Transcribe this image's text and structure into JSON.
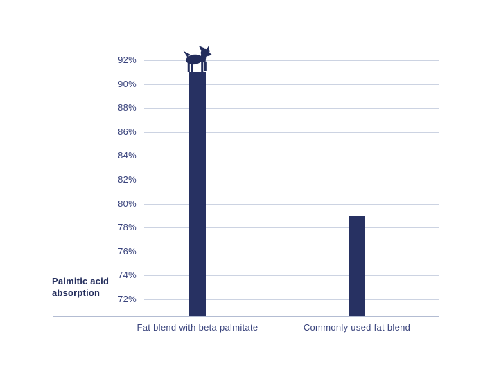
{
  "chart_data": {
    "type": "bar",
    "title": "",
    "ylabel": "Palmitic acid absorption",
    "xlabel": "",
    "categories": [
      "Fat blend with beta palmitate",
      "Commonly used fat blend"
    ],
    "values": [
      91,
      79
    ],
    "value_suffix": "%",
    "yticks": [
      {
        "value": 92,
        "label": "92%"
      },
      {
        "value": 90,
        "label": "90%"
      },
      {
        "value": 88,
        "label": "88%"
      },
      {
        "value": 86,
        "label": "86%"
      },
      {
        "value": 84,
        "label": "84%"
      },
      {
        "value": 82,
        "label": "82%"
      },
      {
        "value": 80,
        "label": "80%"
      },
      {
        "value": 78,
        "label": "78%"
      },
      {
        "value": 76,
        "label": "76%"
      },
      {
        "value": 74,
        "label": "74%"
      },
      {
        "value": 72,
        "label": "72%"
      }
    ],
    "ylim": [
      70.5,
      93.5
    ],
    "grid": true,
    "legend": false,
    "marker": {
      "icon": "dog-icon",
      "category_index": 0
    },
    "colors": {
      "bar": "#273162",
      "marker": "#232d5c",
      "gridline": "#ccd3e2",
      "axis_line": "#b3bcd2",
      "tick_text": "#39437c",
      "category_text": "#39437c",
      "ylabel_text": "#232d5c",
      "background": "#ffffff"
    }
  }
}
